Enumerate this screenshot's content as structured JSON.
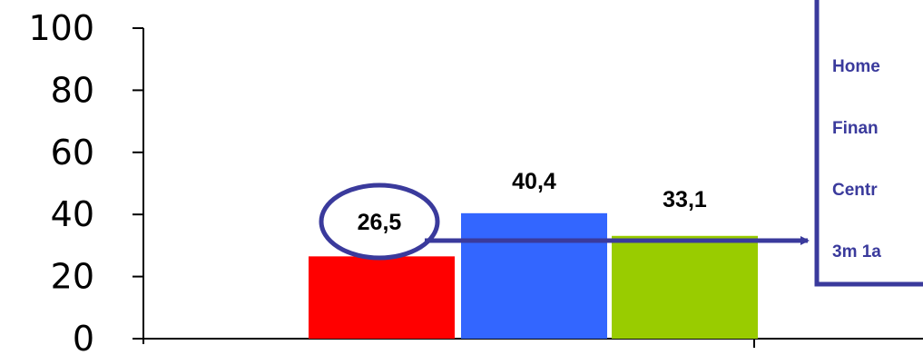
{
  "chart_data": {
    "type": "bar",
    "categories": [
      "",
      "",
      ""
    ],
    "values": [
      26.5,
      40.4,
      33.1
    ],
    "value_labels": [
      "26,5",
      "40,4",
      "33,1"
    ],
    "colors": [
      "#ff0000",
      "#3366ff",
      "#99cc00"
    ],
    "ylim": [
      0,
      100
    ],
    "yticks": [
      0,
      20,
      40,
      60,
      80,
      100
    ],
    "title": "",
    "xlabel": "",
    "ylabel": "",
    "grid": false,
    "callout": {
      "highlighted_value": "26,5",
      "lines": [
        "Home",
        "Finan",
        "Centr",
        "3m 1a"
      ],
      "border_color": "#3a3a9c",
      "text_color": "#3a3a9c"
    }
  }
}
